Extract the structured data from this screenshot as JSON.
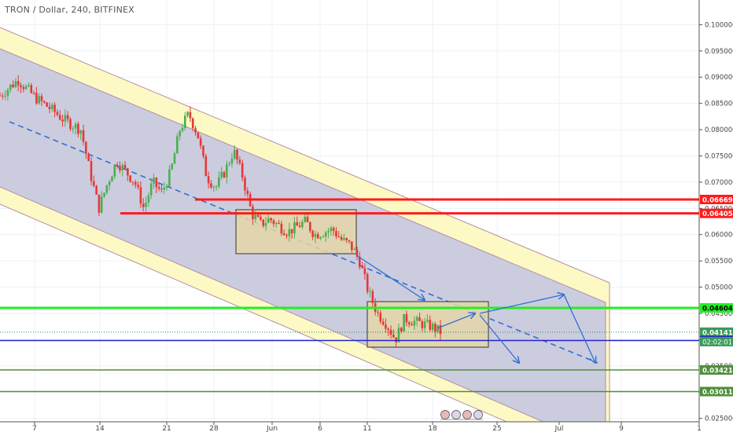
{
  "header": {
    "symbol_title": "TRON / Dollar, 240, BITFINEX"
  },
  "colors": {
    "channel_outer": "#fdf9c4",
    "channel_inner": "#c9c9dd",
    "channel_line": "#b18fa8",
    "candle_up": "#4caf50",
    "candle_down": "#e53935",
    "level_red": "#ff1a1a",
    "level_green": "#22ee22",
    "level_blue": "#2222cc",
    "level_dark_green": "#4e8f3a",
    "price_dotted": "#2e8b57",
    "box_fill": "#e3d6a8",
    "arrow": "#2f6fd6"
  },
  "chart_data": {
    "type": "candlestick",
    "symbol": "TRON / Dollar",
    "interval": "240",
    "exchange": "BITFINEX",
    "ylim": [
      0.0245,
      0.1035
    ],
    "y_ticks": [
      "0.100000",
      "0.095000",
      "0.090000",
      "0.085000",
      "0.080000",
      "0.075000",
      "0.070000",
      "0.065000",
      "0.060000",
      "0.055000",
      "0.050000",
      "0.045000",
      "0.040000",
      "0.035000",
      "0.030000",
      "0.025000"
    ],
    "x_tick_labels": [
      "7",
      "14",
      "21",
      "28",
      "Jun",
      "6",
      "11",
      "18",
      "25",
      "Jul",
      "9",
      "1"
    ],
    "price_path": [
      [
        0,
        0.0865
      ],
      [
        2,
        0.0895
      ],
      [
        4,
        0.086
      ],
      [
        6,
        0.0835
      ],
      [
        7,
        0.082
      ],
      [
        9,
        0.08
      ],
      [
        10,
        0.072
      ],
      [
        11,
        0.065
      ],
      [
        12,
        0.07
      ],
      [
        13,
        0.074
      ],
      [
        15,
        0.07
      ],
      [
        16,
        0.065
      ],
      [
        17,
        0.07
      ],
      [
        18,
        0.068
      ],
      [
        19,
        0.072
      ],
      [
        20,
        0.08
      ],
      [
        21,
        0.083
      ],
      [
        22,
        0.079
      ],
      [
        23,
        0.071
      ],
      [
        24,
        0.069
      ],
      [
        25,
        0.072
      ],
      [
        26,
        0.076
      ],
      [
        27,
        0.071
      ],
      [
        28,
        0.064
      ],
      [
        29,
        0.062
      ],
      [
        30,
        0.063
      ],
      [
        32,
        0.0605
      ],
      [
        34,
        0.0625
      ],
      [
        35,
        0.06
      ],
      [
        37,
        0.061
      ],
      [
        38,
        0.059
      ],
      [
        39,
        0.058
      ],
      [
        40,
        0.055
      ],
      [
        41,
        0.049
      ],
      [
        42,
        0.045
      ],
      [
        43,
        0.043
      ],
      [
        44,
        0.04
      ],
      [
        45,
        0.044
      ],
      [
        46,
        0.0435
      ],
      [
        47,
        0.043
      ],
      [
        48,
        0.0425
      ],
      [
        49,
        0.0415
      ]
    ],
    "horizontal_levels": [
      {
        "value": 0.066697,
        "label": "0.066697",
        "color": "#ff1a1a",
        "style": "solid"
      },
      {
        "value": 0.064052,
        "label": "0.064052",
        "color": "#ff1a1a",
        "style": "solid"
      },
      {
        "value": 0.046047,
        "label": "0.046047",
        "color": "#22ee22",
        "style": "solid"
      },
      {
        "value": 0.041418,
        "label": "0.041418",
        "color": "#2e8b57",
        "style": "dotted"
      },
      {
        "value": 0.039841,
        "label": "0.039841",
        "color": "#2222cc",
        "style": "solid"
      },
      {
        "value": 0.034219,
        "label": "0.034219",
        "color": "#4e8f3a",
        "style": "solid"
      },
      {
        "value": 0.03011,
        "label": "0.030110",
        "color": "#4e8f3a",
        "style": "solid"
      }
    ],
    "countdown_label": "02:02:01",
    "grid": true,
    "legend": "none"
  }
}
